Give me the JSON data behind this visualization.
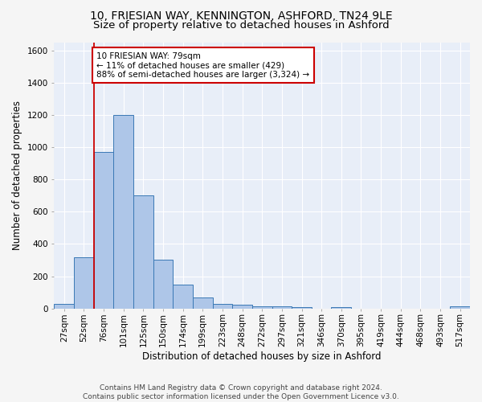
{
  "title1": "10, FRIESIAN WAY, KENNINGTON, ASHFORD, TN24 9LE",
  "title2": "Size of property relative to detached houses in Ashford",
  "xlabel": "Distribution of detached houses by size in Ashford",
  "ylabel": "Number of detached properties",
  "bar_labels": [
    "27sqm",
    "52sqm",
    "76sqm",
    "101sqm",
    "125sqm",
    "150sqm",
    "174sqm",
    "199sqm",
    "223sqm",
    "248sqm",
    "272sqm",
    "297sqm",
    "321sqm",
    "346sqm",
    "370sqm",
    "395sqm",
    "419sqm",
    "444sqm",
    "468sqm",
    "493sqm",
    "517sqm"
  ],
  "bar_values": [
    30,
    320,
    970,
    1200,
    700,
    305,
    150,
    70,
    30,
    22,
    15,
    12,
    8,
    0,
    10,
    0,
    0,
    0,
    0,
    0,
    12
  ],
  "bar_color": "#aec6e8",
  "bar_edge_color": "#3a78b5",
  "vline_x": 1.5,
  "annotation_text": "10 FRIESIAN WAY: 79sqm\n← 11% of detached houses are smaller (429)\n88% of semi-detached houses are larger (3,324) →",
  "annotation_box_color": "#ffffff",
  "annotation_border_color": "#cc0000",
  "vline_color": "#cc0000",
  "ylim": [
    0,
    1650
  ],
  "yticks": [
    0,
    200,
    400,
    600,
    800,
    1000,
    1200,
    1400,
    1600
  ],
  "footer": "Contains HM Land Registry data © Crown copyright and database right 2024.\nContains public sector information licensed under the Open Government Licence v3.0.",
  "fig_bg": "#f5f5f5",
  "background_color": "#e8eef8",
  "grid_color": "#ffffff",
  "title1_fontsize": 10,
  "title2_fontsize": 9.5,
  "label_fontsize": 8.5,
  "tick_fontsize": 7.5,
  "footer_fontsize": 6.5
}
